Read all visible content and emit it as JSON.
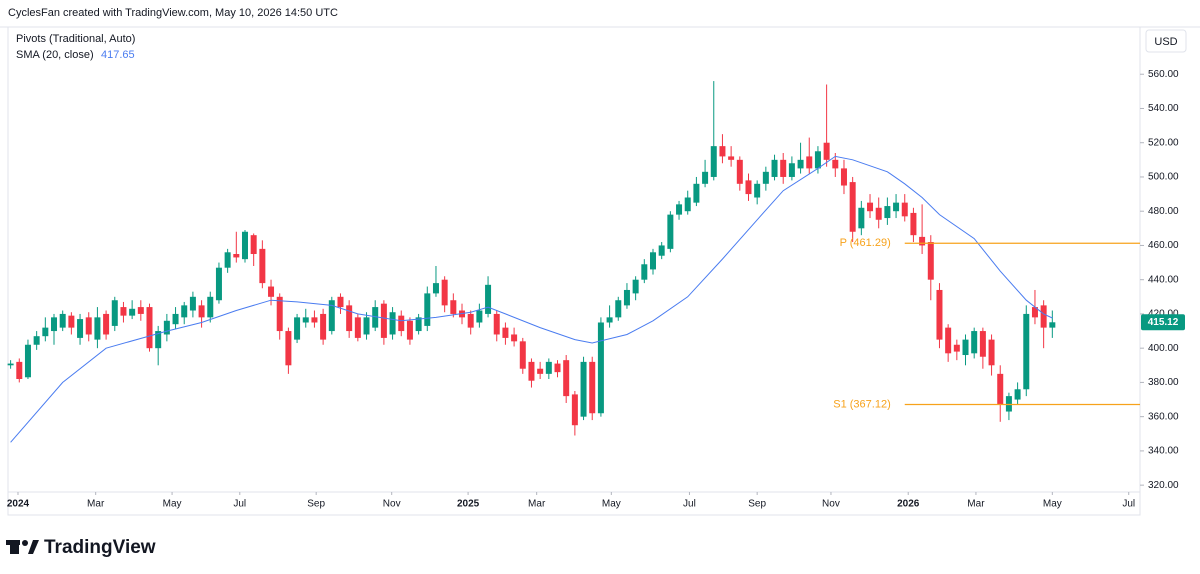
{
  "header": "CyclesFan created with TradingView.com, May 10, 2026 14:50 UTC",
  "brand": "TradingView",
  "chart_data": {
    "type": "candlestick",
    "indicator": "Pivots (Traditional, Auto)",
    "currency": "USD",
    "up_color": "#089981",
    "down_color": "#f23645",
    "open": [
      390,
      392,
      383,
      402,
      407,
      410,
      412,
      419,
      406,
      418,
      405,
      420,
      413,
      424,
      419,
      424,
      424,
      400,
      408,
      414,
      418,
      422,
      425,
      418,
      428,
      447,
      455,
      452,
      466,
      458,
      436,
      430,
      410,
      405,
      415,
      418,
      420,
      410,
      430,
      425,
      418,
      408,
      412,
      426,
      408,
      419,
      416,
      410,
      413,
      432,
      440,
      428,
      422,
      420,
      415,
      420,
      420,
      412,
      408,
      404,
      392,
      388,
      385,
      391,
      393,
      373,
      360,
      392,
      362,
      415,
      418,
      425,
      432,
      440,
      446,
      454,
      458,
      478,
      480,
      485,
      496,
      500,
      518,
      512,
      510,
      498,
      488,
      496,
      500,
      510,
      500,
      505,
      512,
      505,
      520,
      510,
      505,
      497,
      470,
      485,
      482,
      476,
      480,
      485,
      479,
      465,
      462,
      434,
      412,
      402,
      396,
      397,
      410,
      405,
      385,
      363,
      370,
      376,
      424,
      425,
      412
    ],
    "high": [
      393,
      394,
      405,
      410,
      418,
      420,
      422,
      421,
      420,
      421,
      424,
      422,
      430,
      427,
      428,
      428,
      426,
      413,
      420,
      424,
      427,
      433,
      428,
      433,
      450,
      458,
      468,
      469,
      467,
      463,
      440,
      432,
      412,
      420,
      423,
      422,
      423,
      430,
      432,
      428,
      420,
      421,
      428,
      428,
      424,
      422,
      418,
      420,
      436,
      448,
      442,
      432,
      426,
      422,
      426,
      442,
      422,
      415,
      412,
      406,
      394,
      392,
      394,
      393,
      396,
      375,
      395,
      395,
      418,
      425,
      430,
      438,
      442,
      452,
      458,
      462,
      480,
      486,
      492,
      500,
      510,
      556,
      525,
      518,
      512,
      502,
      498,
      506,
      513,
      514,
      512,
      520,
      523,
      518,
      554,
      514,
      510,
      500,
      486,
      490,
      488,
      488,
      490,
      490,
      482,
      484,
      466,
      438,
      414,
      405,
      408,
      412,
      412,
      408,
      390,
      374,
      380,
      425,
      434,
      428,
      422
    ],
    "low": [
      388,
      380,
      382,
      399,
      404,
      402,
      410,
      408,
      402,
      404,
      400,
      405,
      410,
      415,
      417,
      416,
      398,
      390,
      404,
      411,
      414,
      418,
      412,
      415,
      426,
      444,
      450,
      450,
      448,
      435,
      425,
      405,
      385,
      403,
      412,
      412,
      402,
      408,
      420,
      406,
      404,
      405,
      410,
      402,
      405,
      407,
      402,
      408,
      410,
      430,
      421,
      418,
      414,
      408,
      412,
      418,
      404,
      402,
      401,
      385,
      377,
      382,
      382,
      383,
      368,
      349,
      358,
      358,
      360,
      412,
      416,
      423,
      428,
      438,
      443,
      452,
      456,
      475,
      478,
      483,
      494,
      498,
      508,
      506,
      492,
      486,
      484,
      492,
      498,
      496,
      498,
      502,
      502,
      502,
      506,
      500,
      490,
      462,
      466,
      476,
      470,
      472,
      476,
      474,
      462,
      455,
      428,
      400,
      392,
      393,
      390,
      394,
      388,
      384,
      357,
      358,
      367,
      372,
      414,
      400,
      406
    ],
    "close": [
      391,
      382,
      402,
      407,
      412,
      418,
      420,
      412,
      417,
      408,
      418,
      408,
      428,
      419,
      423,
      420,
      400,
      410,
      416,
      420,
      425,
      430,
      418,
      430,
      447,
      456,
      453,
      468,
      455,
      438,
      430,
      410,
      390,
      418,
      418,
      415,
      405,
      428,
      424,
      410,
      406,
      418,
      424,
      406,
      421,
      410,
      405,
      418,
      432,
      438,
      425,
      420,
      418,
      412,
      422,
      437,
      408,
      406,
      404,
      388,
      381,
      385,
      392,
      386,
      372,
      355,
      392,
      362,
      415,
      418,
      428,
      434,
      440,
      449,
      456,
      460,
      478,
      484,
      488,
      496,
      503,
      518,
      512,
      510,
      496,
      490,
      496,
      503,
      510,
      500,
      508,
      510,
      505,
      515,
      510,
      505,
      495,
      468,
      482,
      480,
      475,
      483,
      485,
      477,
      466,
      460,
      440,
      405,
      397,
      398,
      405,
      410,
      395,
      390,
      367,
      372,
      376,
      420,
      418,
      412,
      415.12
    ],
    "sma": {
      "name": "SMA (20, close)",
      "color": "#4a7cf0",
      "x": [
        0,
        6,
        11,
        18,
        22,
        26,
        30,
        33,
        37,
        40,
        45,
        49,
        53,
        55,
        57,
        61,
        65,
        67,
        71,
        74,
        78,
        82,
        86,
        89,
        93,
        95,
        97,
        101,
        103,
        105,
        107,
        111,
        114,
        117,
        119,
        120
      ],
      "values": [
        345,
        380,
        400,
        410,
        415,
        422,
        428,
        427,
        425,
        420,
        416,
        418,
        421,
        424,
        420,
        412,
        405,
        403,
        408,
        416,
        430,
        452,
        475,
        492,
        505,
        512,
        510,
        503,
        496,
        488,
        478,
        464,
        445,
        428,
        420,
        417.65
      ]
    },
    "pivots": {
      "color": "#f7a21b",
      "start": 103,
      "levels": [
        {
          "label": "P (461.29)",
          "value": 461.29
        },
        {
          "label": "S1 (367.12)",
          "value": 367.12
        }
      ]
    },
    "xlim": [
      -0.3,
      130.1
    ],
    "xticks": [
      {
        "value": 0.85,
        "label": "2024"
      },
      {
        "value": 9.8,
        "label": "Mar"
      },
      {
        "value": 18.6,
        "label": "May"
      },
      {
        "value": 26.4,
        "label": "Jul"
      },
      {
        "value": 35.2,
        "label": "Sep"
      },
      {
        "value": 43.9,
        "label": "Nov"
      },
      {
        "value": 52.7,
        "label": "2025"
      },
      {
        "value": 60.6,
        "label": "Mar"
      },
      {
        "value": 69.2,
        "label": "May"
      },
      {
        "value": 78.2,
        "label": "Jul"
      },
      {
        "value": 86,
        "label": "Sep"
      },
      {
        "value": 94.5,
        "label": "Nov"
      },
      {
        "value": 103.4,
        "label": "2026"
      },
      {
        "value": 111.2,
        "label": "Mar"
      },
      {
        "value": 120,
        "label": "May"
      },
      {
        "value": 128.8,
        "label": "Jul"
      }
    ],
    "ylim": [
      316,
      587
    ],
    "yticks": [
      {
        "value": 320,
        "label": "320.00"
      },
      {
        "value": 340,
        "label": "340.00"
      },
      {
        "value": 360,
        "label": "360.00"
      },
      {
        "value": 380,
        "label": "380.00"
      },
      {
        "value": 400,
        "label": "400.00"
      },
      {
        "value": 420,
        "label": "420.00"
      },
      {
        "value": 440,
        "label": "440.00"
      },
      {
        "value": 460,
        "label": "460.00"
      },
      {
        "value": 480,
        "label": "480.00"
      },
      {
        "value": 500,
        "label": "500.00"
      },
      {
        "value": 520,
        "label": "520.00"
      },
      {
        "value": 540,
        "label": "540.00"
      },
      {
        "value": 560,
        "label": "560.00"
      }
    ],
    "grid": false
  }
}
